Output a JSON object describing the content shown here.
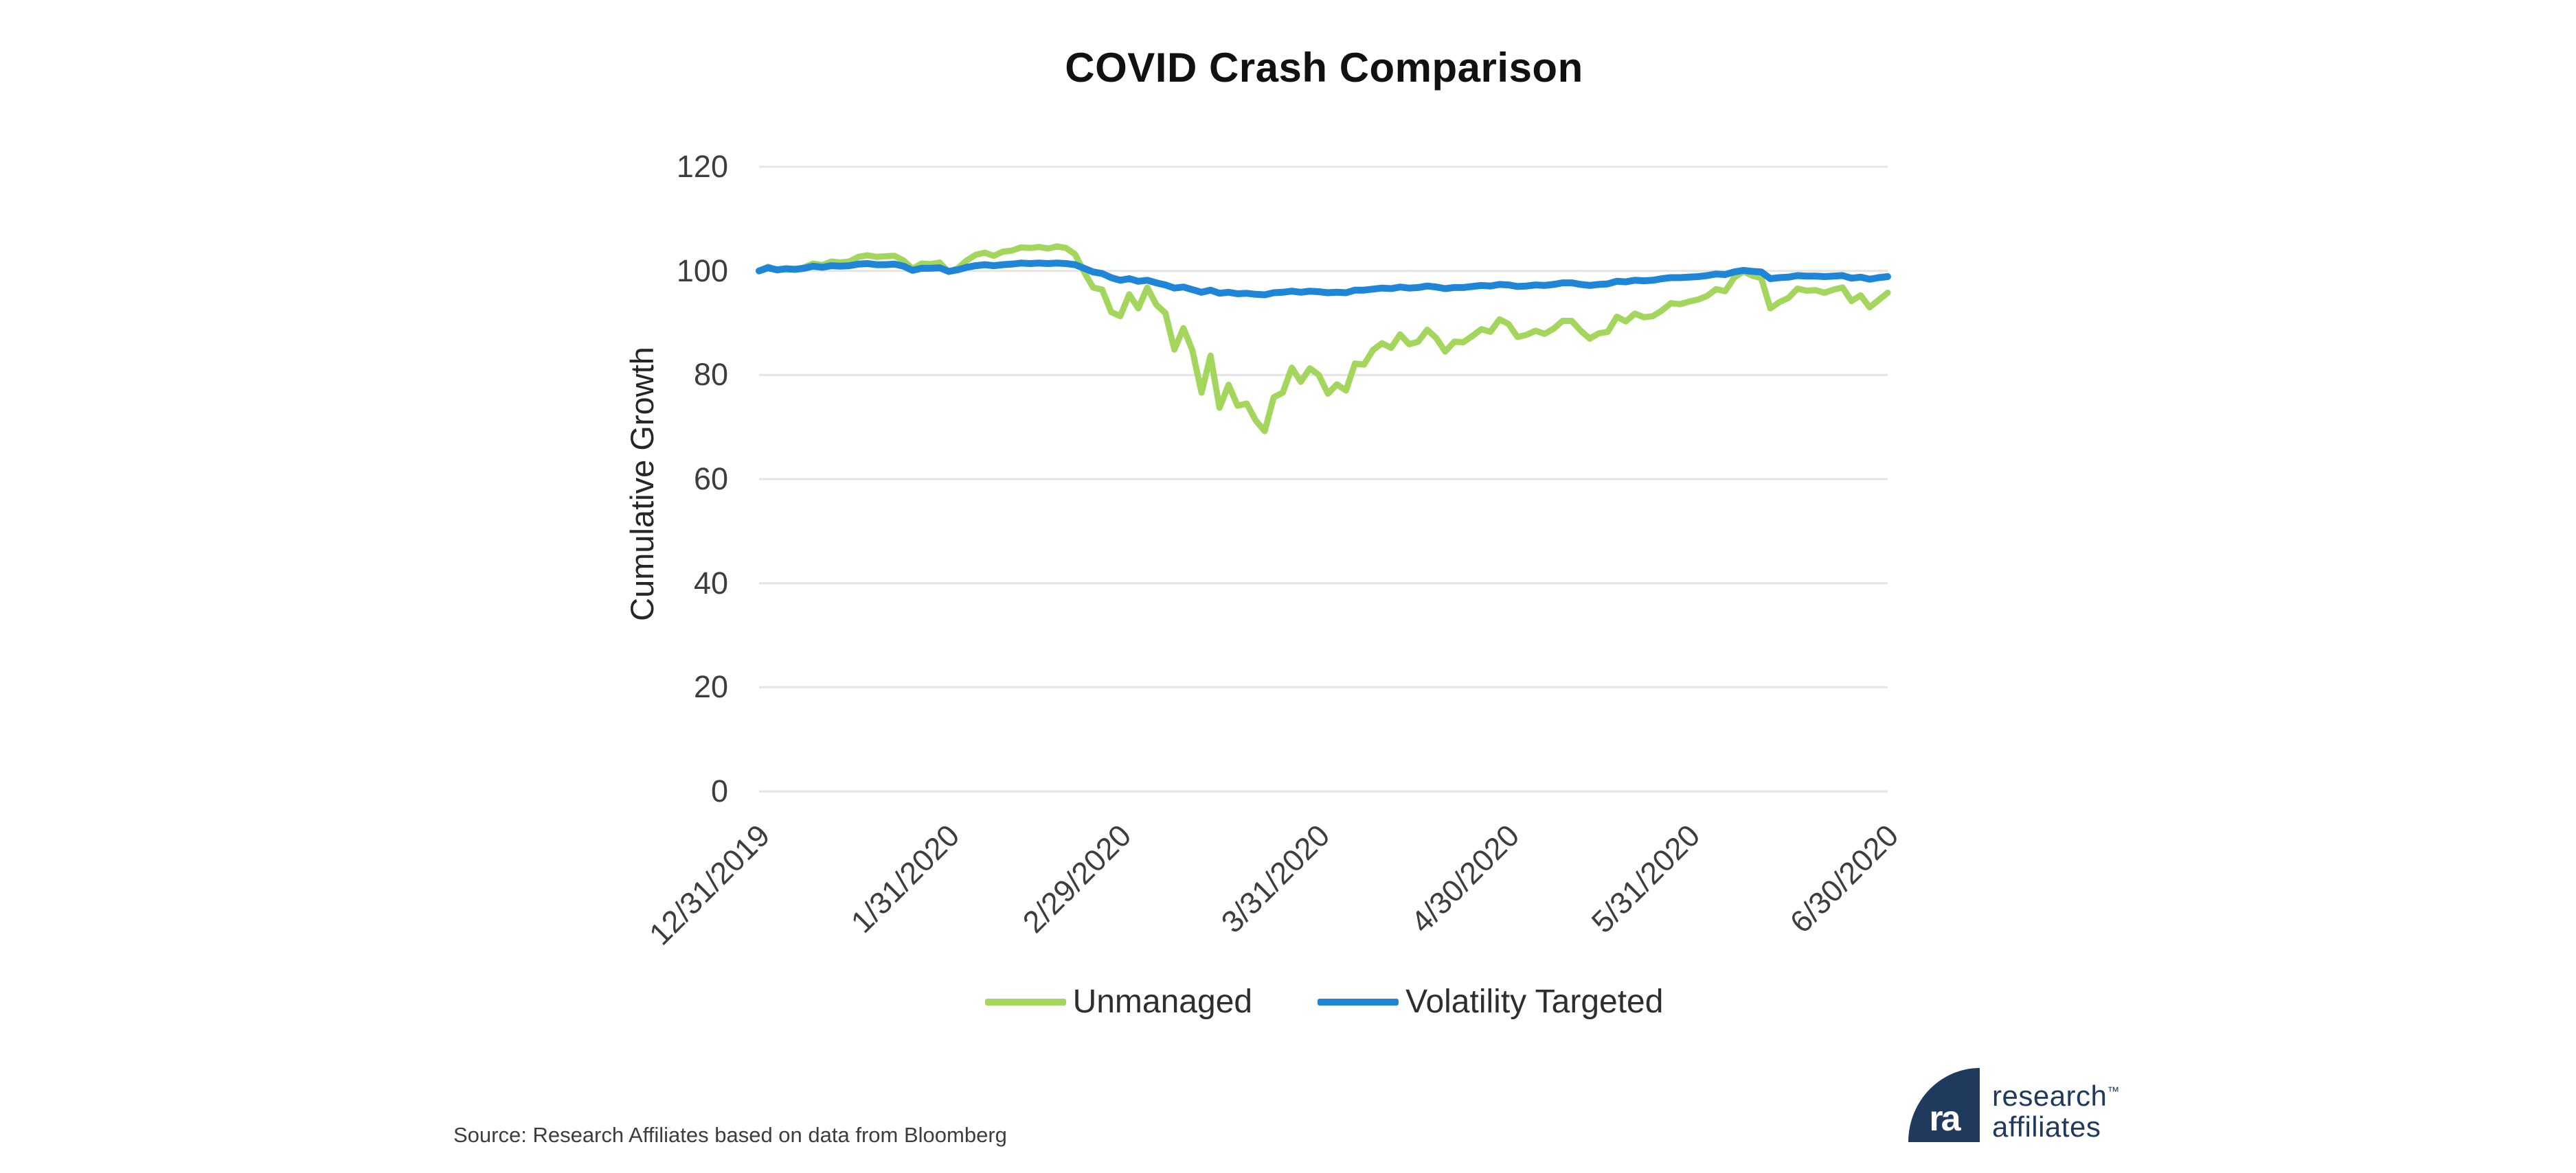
{
  "chart_data": {
    "type": "line",
    "title": "COVID Crash Comparison",
    "ylabel": "Cumulative Growth",
    "ylim": [
      0,
      120
    ],
    "yticks": [
      0,
      20,
      40,
      60,
      80,
      100,
      120
    ],
    "grid": "horizontal",
    "grid_color": "#e4e4e4",
    "legend_position": "bottom",
    "xtick_labels": [
      "12/31/2019",
      "1/31/2020",
      "2/29/2020",
      "3/31/2020",
      "4/30/2020",
      "5/31/2020",
      "6/30/2020"
    ],
    "xtick_indices": [
      0,
      21,
      40,
      62,
      83,
      103,
      125
    ],
    "x_dates": [
      "12/31/2019",
      "1/2/2020",
      "1/3/2020",
      "1/6/2020",
      "1/7/2020",
      "1/8/2020",
      "1/9/2020",
      "1/10/2020",
      "1/13/2020",
      "1/14/2020",
      "1/15/2020",
      "1/16/2020",
      "1/17/2020",
      "1/21/2020",
      "1/22/2020",
      "1/23/2020",
      "1/24/2020",
      "1/27/2020",
      "1/28/2020",
      "1/29/2020",
      "1/30/2020",
      "1/31/2020",
      "2/3/2020",
      "2/4/2020",
      "2/5/2020",
      "2/6/2020",
      "2/7/2020",
      "2/10/2020",
      "2/11/2020",
      "2/12/2020",
      "2/13/2020",
      "2/14/2020",
      "2/18/2020",
      "2/19/2020",
      "2/20/2020",
      "2/21/2020",
      "2/24/2020",
      "2/25/2020",
      "2/26/2020",
      "2/27/2020",
      "2/28/2020",
      "3/2/2020",
      "3/3/2020",
      "3/4/2020",
      "3/5/2020",
      "3/6/2020",
      "3/9/2020",
      "3/10/2020",
      "3/11/2020",
      "3/12/2020",
      "3/13/2020",
      "3/16/2020",
      "3/17/2020",
      "3/18/2020",
      "3/19/2020",
      "3/20/2020",
      "3/23/2020",
      "3/24/2020",
      "3/25/2020",
      "3/26/2020",
      "3/27/2020",
      "3/30/2020",
      "3/31/2020",
      "4/1/2020",
      "4/2/2020",
      "4/3/2020",
      "4/6/2020",
      "4/7/2020",
      "4/8/2020",
      "4/9/2020",
      "4/13/2020",
      "4/14/2020",
      "4/15/2020",
      "4/16/2020",
      "4/17/2020",
      "4/20/2020",
      "4/21/2020",
      "4/22/2020",
      "4/23/2020",
      "4/24/2020",
      "4/27/2020",
      "4/28/2020",
      "4/29/2020",
      "4/30/2020",
      "5/1/2020",
      "5/4/2020",
      "5/5/2020",
      "5/6/2020",
      "5/7/2020",
      "5/8/2020",
      "5/11/2020",
      "5/12/2020",
      "5/13/2020",
      "5/14/2020",
      "5/15/2020",
      "5/18/2020",
      "5/19/2020",
      "5/20/2020",
      "5/21/2020",
      "5/22/2020",
      "5/26/2020",
      "5/27/2020",
      "5/28/2020",
      "5/29/2020",
      "6/1/2020",
      "6/2/2020",
      "6/3/2020",
      "6/4/2020",
      "6/5/2020",
      "6/8/2020",
      "6/9/2020",
      "6/10/2020",
      "6/11/2020",
      "6/12/2020",
      "6/15/2020",
      "6/16/2020",
      "6/17/2020",
      "6/18/2020",
      "6/19/2020",
      "6/22/2020",
      "6/23/2020",
      "6/24/2020",
      "6/25/2020",
      "6/26/2020",
      "6/29/2020",
      "6/30/2020"
    ],
    "series": [
      {
        "name": "Unmanaged",
        "color": "#a4d65e",
        "values": [
          100.0,
          100.8,
          100.1,
          100.5,
          100.2,
          100.7,
          101.4,
          101.1,
          101.8,
          101.6,
          101.8,
          102.7,
          103.0,
          102.7,
          102.8,
          102.9,
          102.0,
          100.4,
          101.4,
          101.3,
          101.6,
          99.8,
          100.5,
          102.0,
          103.1,
          103.5,
          102.9,
          103.7,
          103.9,
          104.5,
          104.4,
          104.6,
          104.3,
          104.7,
          104.4,
          103.2,
          99.8,
          96.8,
          96.4,
          92.1,
          91.3,
          95.5,
          92.8,
          96.8,
          93.5,
          91.9,
          84.9,
          89.0,
          84.7,
          76.6,
          83.7,
          73.7,
          78.1,
          74.1,
          74.5,
          71.3,
          69.2,
          75.7,
          76.6,
          81.4,
          78.7,
          81.3,
          80.0,
          76.4,
          78.2,
          77.0,
          82.2,
          82.0,
          84.8,
          86.1,
          85.2,
          87.8,
          85.9,
          86.4,
          88.7,
          87.1,
          84.5,
          86.4,
          86.3,
          87.5,
          88.8,
          88.3,
          90.7,
          89.8,
          87.3,
          87.7,
          88.5,
          87.9,
          88.9,
          90.4,
          90.4,
          88.5,
          87.0,
          88.0,
          88.3,
          91.2,
          90.3,
          91.8,
          91.1,
          91.3,
          92.4,
          93.8,
          93.6,
          94.1,
          94.5,
          95.2,
          96.5,
          96.1,
          98.7,
          99.9,
          99.1,
          98.6,
          92.8,
          94.0,
          94.8,
          96.6,
          96.2,
          96.3,
          95.8,
          96.4,
          96.8,
          94.2,
          95.3,
          93.0,
          94.4,
          95.8
        ]
      },
      {
        "name": "Volatility Targeted",
        "color": "#1f86d7",
        "values": [
          100.0,
          100.6,
          100.2,
          100.4,
          100.3,
          100.5,
          100.9,
          100.7,
          101.0,
          100.9,
          101.0,
          101.3,
          101.4,
          101.2,
          101.2,
          101.3,
          100.9,
          100.1,
          100.5,
          100.5,
          100.6,
          99.9,
          100.2,
          100.7,
          101.0,
          101.2,
          101.0,
          101.2,
          101.3,
          101.5,
          101.4,
          101.5,
          101.4,
          101.5,
          101.4,
          101.2,
          100.5,
          99.8,
          99.5,
          98.7,
          98.2,
          98.5,
          98.0,
          98.2,
          97.7,
          97.3,
          96.7,
          96.9,
          96.4,
          95.9,
          96.3,
          95.7,
          95.9,
          95.6,
          95.7,
          95.5,
          95.4,
          95.8,
          95.9,
          96.1,
          95.9,
          96.1,
          96.0,
          95.8,
          95.9,
          95.8,
          96.3,
          96.3,
          96.5,
          96.7,
          96.6,
          96.9,
          96.7,
          96.8,
          97.1,
          96.9,
          96.6,
          96.8,
          96.8,
          97.0,
          97.2,
          97.1,
          97.4,
          97.3,
          97.0,
          97.1,
          97.3,
          97.2,
          97.4,
          97.7,
          97.7,
          97.4,
          97.2,
          97.4,
          97.5,
          98.0,
          97.9,
          98.2,
          98.1,
          98.2,
          98.5,
          98.7,
          98.7,
          98.8,
          98.9,
          99.1,
          99.4,
          99.3,
          99.8,
          100.1,
          99.9,
          99.8,
          98.5,
          98.7,
          98.8,
          99.1,
          99.0,
          99.0,
          98.9,
          99.0,
          99.1,
          98.6,
          98.8,
          98.4,
          98.7,
          98.9
        ]
      }
    ]
  },
  "footer": {
    "source": "Source: Research Affiliates based on data from Bloomberg"
  },
  "logo": {
    "monogram": "ra",
    "line1": "research",
    "tm": "™",
    "line2": "affiliates",
    "color": "#1f3a5c"
  }
}
